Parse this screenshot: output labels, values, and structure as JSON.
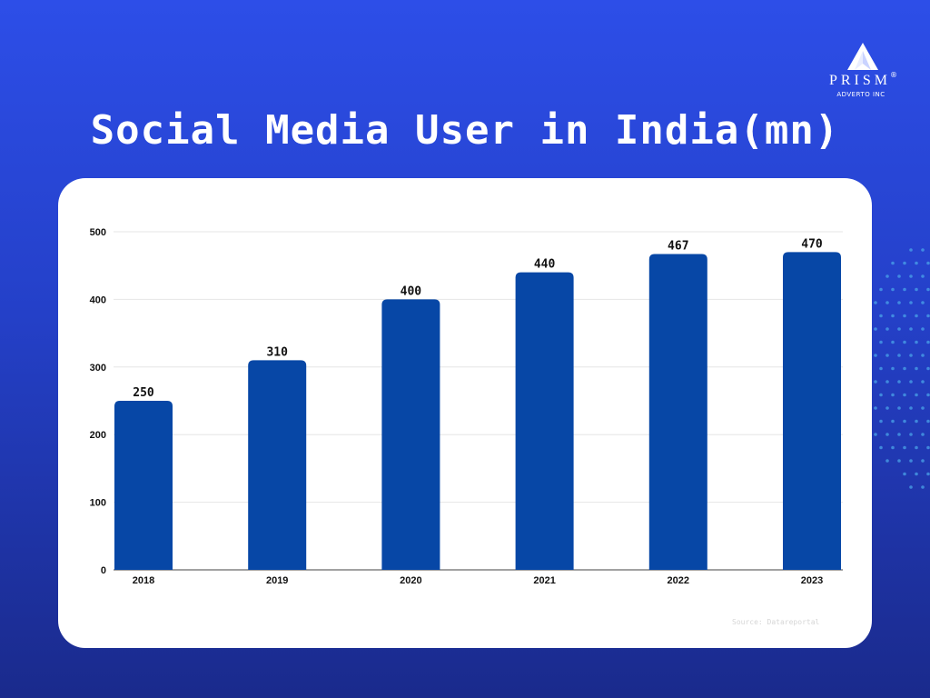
{
  "logo": {
    "name": "PRISM",
    "registered": "®",
    "subtitle": "ADVERTO INC"
  },
  "title": "Social Media User in India(mn)",
  "source": "Source: Datareportal",
  "colors": {
    "bar": "#0747a6",
    "grid": "#e6e6e6",
    "axis": "#444444",
    "text": "#111111"
  },
  "chart_data": {
    "type": "bar",
    "title": "Social Media User in India(mn)",
    "categories": [
      "2018",
      "2019",
      "2020",
      "2021",
      "2022",
      "2023"
    ],
    "values": [
      250,
      310,
      400,
      440,
      467,
      470
    ],
    "value_labels": [
      "250",
      "310",
      "400",
      "440",
      "467",
      "470"
    ],
    "yticks": [
      0,
      100,
      200,
      300,
      400,
      500
    ],
    "ylim": [
      0,
      500
    ],
    "xlabel": "",
    "ylabel": "",
    "grid": true,
    "legend": "none"
  }
}
